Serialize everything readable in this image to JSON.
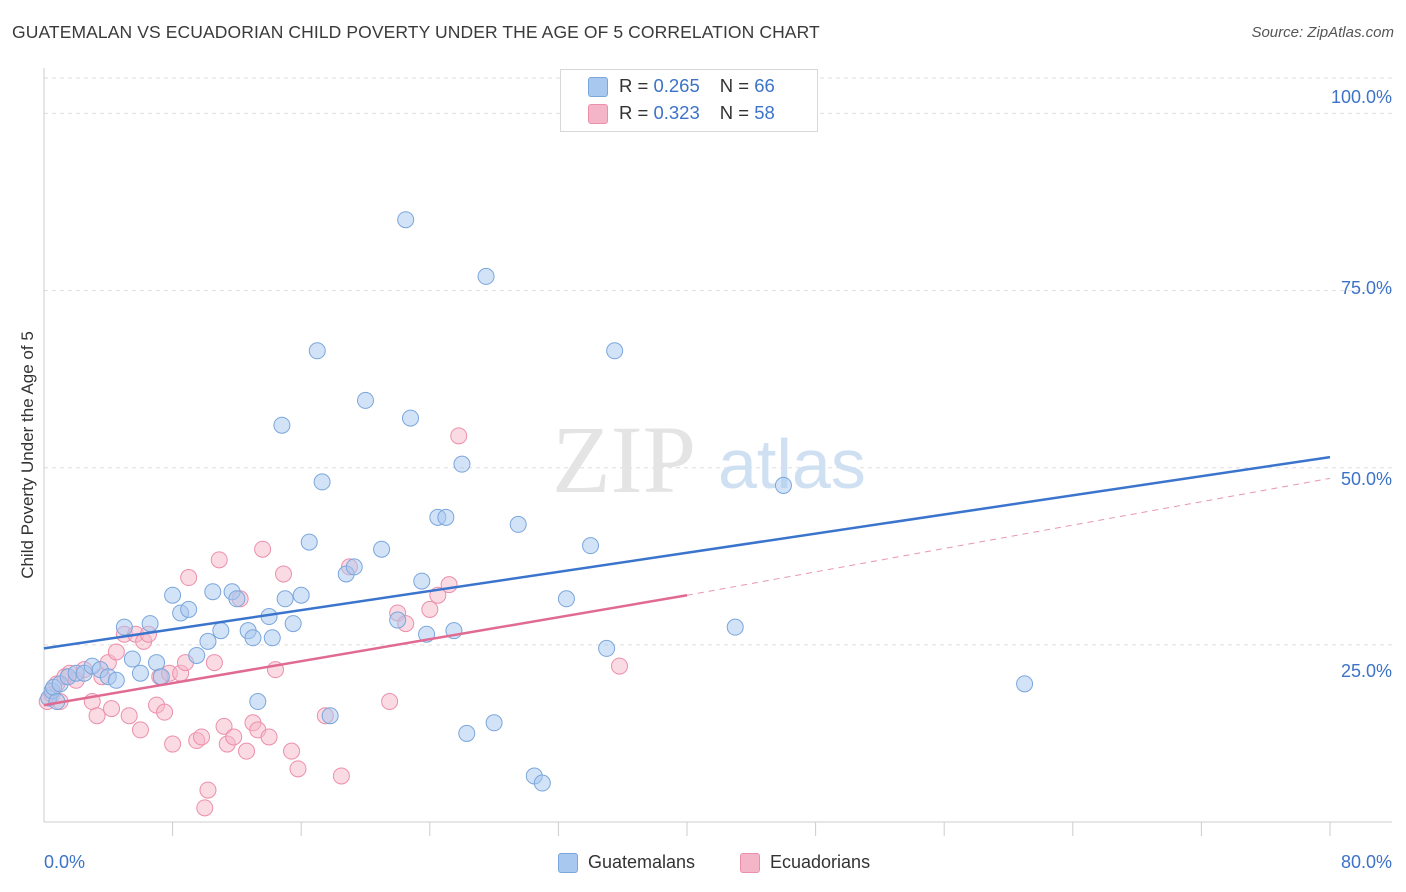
{
  "header": {
    "title": "GUATEMALAN VS ECUADORIAN CHILD POVERTY UNDER THE AGE OF 5 CORRELATION CHART",
    "source": "Source: ZipAtlas.com"
  },
  "watermark": {
    "zip": "ZIP",
    "atlas": "atlas"
  },
  "legend_top": {
    "guatemalans": {
      "r_label": "R =",
      "r_value": "0.265",
      "n_label": "N =",
      "n_value": "66"
    },
    "ecuadorians": {
      "r_label": "R =",
      "r_value": "0.323",
      "n_label": "N =",
      "n_value": "58"
    }
  },
  "legend_bottom": {
    "guatemalans": "Guatemalans",
    "ecuadorians": "Ecuadorians"
  },
  "axis_labels": {
    "x_min": "0.0%",
    "x_max": "80.0%",
    "y_ticks": [
      "100.0%",
      "75.0%",
      "50.0%",
      "25.0%"
    ],
    "ylabel": "Child Poverty Under the Age of 5"
  },
  "colors": {
    "guatemalan_fill": "#a8c8f0",
    "guatemalan_stroke": "#7aa6dc",
    "guatemalan_line": "#3a74cc",
    "ecuadorian_fill": "#f5b5c8",
    "ecuadorian_stroke": "#ec8fab",
    "ecuadorian_line": "#e06a92",
    "tick_text": "#3c73c8",
    "grid": "#dddddd"
  },
  "chart_data": {
    "type": "scatter",
    "title": "GUATEMALAN VS ECUADORIAN CHILD POVERTY UNDER THE AGE OF 5 CORRELATION CHART",
    "xlabel": "",
    "ylabel": "Child Poverty Under the Age of 5",
    "xlim": [
      0,
      80
    ],
    "ylim": [
      0,
      105
    ],
    "y_ticks": [
      25,
      50,
      75,
      100
    ],
    "grid": true,
    "legend_placement": "top-center",
    "series": [
      {
        "name": "Guatemalans",
        "r": 0.265,
        "n": 66,
        "trend": {
          "x": [
            0,
            80
          ],
          "y": [
            24.5,
            51.5
          ],
          "dashed_from": null
        },
        "points": [
          [
            0.3,
            17.5
          ],
          [
            0.5,
            18.5
          ],
          [
            0.6,
            19
          ],
          [
            0.8,
            17
          ],
          [
            1,
            19.5
          ],
          [
            1.5,
            20.5
          ],
          [
            2,
            21
          ],
          [
            2.5,
            21
          ],
          [
            3,
            22
          ],
          [
            3.5,
            21.5
          ],
          [
            4,
            20.5
          ],
          [
            4.5,
            20
          ],
          [
            5,
            27.5
          ],
          [
            5.5,
            23
          ],
          [
            6,
            21
          ],
          [
            6.6,
            28
          ],
          [
            7,
            22.5
          ],
          [
            7.3,
            20.5
          ],
          [
            8,
            32
          ],
          [
            8.5,
            29.5
          ],
          [
            9,
            30
          ],
          [
            9.5,
            23.5
          ],
          [
            10.2,
            25.5
          ],
          [
            10.5,
            32.5
          ],
          [
            11,
            27
          ],
          [
            11.7,
            32.5
          ],
          [
            12,
            31.5
          ],
          [
            12.7,
            27
          ],
          [
            13,
            26
          ],
          [
            13.3,
            17
          ],
          [
            14,
            29
          ],
          [
            14.2,
            26
          ],
          [
            14.8,
            56
          ],
          [
            15,
            31.5
          ],
          [
            15.5,
            28
          ],
          [
            16,
            32
          ],
          [
            16.5,
            39.5
          ],
          [
            17,
            66.5
          ],
          [
            17.3,
            48
          ],
          [
            17.8,
            15
          ],
          [
            18.8,
            35
          ],
          [
            19.3,
            36
          ],
          [
            20,
            59.5
          ],
          [
            21,
            38.5
          ],
          [
            22,
            28.5
          ],
          [
            22.5,
            85
          ],
          [
            22.8,
            57
          ],
          [
            23.5,
            34
          ],
          [
            23.8,
            26.5
          ],
          [
            24.5,
            43
          ],
          [
            25,
            43
          ],
          [
            25.5,
            27
          ],
          [
            26,
            50.5
          ],
          [
            26.3,
            12.5
          ],
          [
            27.5,
            77
          ],
          [
            28,
            14
          ],
          [
            29.5,
            42
          ],
          [
            30.5,
            6.5
          ],
          [
            31,
            5.5
          ],
          [
            32.5,
            31.5
          ],
          [
            34,
            39
          ],
          [
            35,
            24.5
          ],
          [
            35.5,
            66.5
          ],
          [
            43,
            27.5
          ],
          [
            46,
            47.5
          ],
          [
            61,
            19.5
          ]
        ]
      },
      {
        "name": "Ecuadorians",
        "r": 0.323,
        "n": 58,
        "trend": {
          "x": [
            0,
            40,
            80
          ],
          "y": [
            16.5,
            32,
            48.5
          ],
          "solid_until_x": 40
        },
        "points": [
          [
            0.2,
            17
          ],
          [
            0.5,
            18
          ],
          [
            0.8,
            19.5
          ],
          [
            1,
            17
          ],
          [
            1.3,
            20.5
          ],
          [
            1.6,
            21
          ],
          [
            2,
            20
          ],
          [
            2.5,
            21.5
          ],
          [
            3,
            17
          ],
          [
            3.3,
            15
          ],
          [
            3.6,
            20.5
          ],
          [
            4,
            22.5
          ],
          [
            4.2,
            16
          ],
          [
            4.5,
            24
          ],
          [
            5,
            26.5
          ],
          [
            5.3,
            15
          ],
          [
            5.7,
            26.5
          ],
          [
            6,
            13
          ],
          [
            6.2,
            25.5
          ],
          [
            6.5,
            26.5
          ],
          [
            7,
            16.5
          ],
          [
            7.2,
            20.5
          ],
          [
            7.5,
            15.5
          ],
          [
            7.8,
            21
          ],
          [
            8,
            11
          ],
          [
            8.5,
            21
          ],
          [
            8.8,
            22.5
          ],
          [
            9,
            34.5
          ],
          [
            9.5,
            11.5
          ],
          [
            9.8,
            12
          ],
          [
            10,
            2
          ],
          [
            10.2,
            4.5
          ],
          [
            10.6,
            22.5
          ],
          [
            10.9,
            37
          ],
          [
            11.2,
            13.5
          ],
          [
            11.4,
            11
          ],
          [
            11.8,
            12
          ],
          [
            12.2,
            31.5
          ],
          [
            12.6,
            10
          ],
          [
            13,
            14
          ],
          [
            13.3,
            13
          ],
          [
            13.6,
            38.5
          ],
          [
            14,
            12
          ],
          [
            14.4,
            21.5
          ],
          [
            14.9,
            35
          ],
          [
            15.4,
            10
          ],
          [
            15.8,
            7.5
          ],
          [
            17.5,
            15
          ],
          [
            18.5,
            6.5
          ],
          [
            19,
            36
          ],
          [
            21.5,
            17
          ],
          [
            22,
            29.5
          ],
          [
            22.5,
            28
          ],
          [
            24,
            30
          ],
          [
            24.5,
            32
          ],
          [
            25.2,
            33.5
          ],
          [
            25.8,
            54.5
          ],
          [
            35.8,
            22
          ]
        ]
      }
    ]
  }
}
